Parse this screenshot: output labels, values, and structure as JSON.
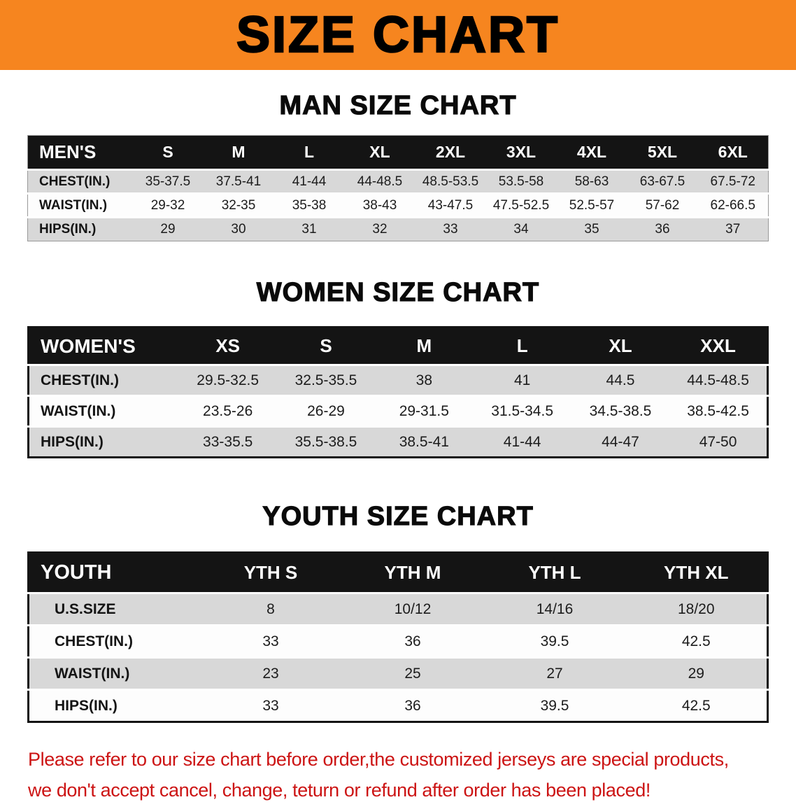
{
  "banner": {
    "title": "SIZE CHART",
    "background_color": "#f6851f",
    "text_color": "#000000"
  },
  "sections": [
    {
      "heading": "MAN SIZE CHART",
      "table": {
        "title": "MEN'S",
        "header": [
          "MEN'S",
          "S",
          "M",
          "L",
          "XL",
          "2XL",
          "3XL",
          "4XL",
          "5XL",
          "6XL"
        ],
        "rows": [
          [
            "CHEST(IN.)",
            "35-37.5",
            "37.5-41",
            "41-44",
            "44-48.5",
            "48.5-53.5",
            "53.5-58",
            "58-63",
            "63-67.5",
            "67.5-72"
          ],
          [
            "WAIST(IN.)",
            "29-32",
            "32-35",
            "35-38",
            "38-43",
            "43-47.5",
            "47.5-52.5",
            "52.5-57",
            "57-62",
            "62-66.5"
          ],
          [
            "HIPS(IN.)",
            "29",
            "30",
            "31",
            "32",
            "33",
            "34",
            "35",
            "36",
            "37"
          ]
        ]
      }
    },
    {
      "heading": "WOMEN SIZE CHART",
      "table": {
        "title": "WOMEN'S",
        "header": [
          "WOMEN'S",
          "XS",
          "S",
          "M",
          "L",
          "XL",
          "XXL"
        ],
        "rows": [
          [
            "CHEST(IN.)",
            "29.5-32.5",
            "32.5-35.5",
            "38",
            "41",
            "44.5",
            "44.5-48.5"
          ],
          [
            "WAIST(IN.)",
            "23.5-26",
            "26-29",
            "29-31.5",
            "31.5-34.5",
            "34.5-38.5",
            "38.5-42.5"
          ],
          [
            "HIPS(IN.)",
            "33-35.5",
            "35.5-38.5",
            "38.5-41",
            "41-44",
            "44-47",
            "47-50"
          ]
        ]
      }
    },
    {
      "heading": "YOUTH SIZE CHART",
      "table": {
        "title": "YOUTH",
        "header": [
          "YOUTH",
          "YTH S",
          "YTH M",
          "YTH L",
          "YTH XL"
        ],
        "rows": [
          [
            "U.S.SIZE",
            "8",
            "10/12",
            "14/16",
            "18/20"
          ],
          [
            "CHEST(IN.)",
            "33",
            "36",
            "39.5",
            "42.5"
          ],
          [
            "WAIST(IN.)",
            "23",
            "25",
            "27",
            "29"
          ],
          [
            "HIPS(IN.)",
            "33",
            "36",
            "39.5",
            "42.5"
          ]
        ]
      }
    }
  ],
  "disclaimer": {
    "line1": "Please refer to our size chart before order,the customized jerseys are special products,",
    "line2": "we don't accept cancel, change, teturn or refund after order has been placed!",
    "text_color": "#cc1414"
  },
  "colors": {
    "banner_orange": "#f6851f",
    "table_header_black": "#141414",
    "row_stripe_gray": "#d8d8d8",
    "disclaimer_red": "#cc1414"
  }
}
